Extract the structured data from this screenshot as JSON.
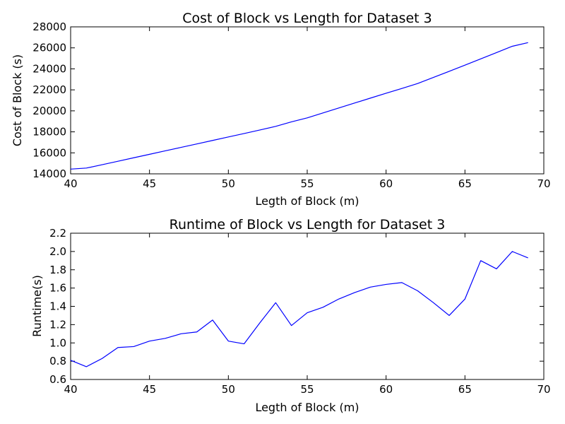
{
  "chart_data": [
    {
      "type": "line",
      "title": "Cost of Block vs Length for Dataset 3",
      "xlabel": "Legth of Block (m)",
      "ylabel": "Cost of Block (s)",
      "xlim": [
        40,
        70
      ],
      "ylim": [
        14000,
        28000
      ],
      "xticks": [
        "40",
        "45",
        "50",
        "55",
        "60",
        "65",
        "70"
      ],
      "yticks": [
        "14000",
        "16000",
        "18000",
        "20000",
        "22000",
        "24000",
        "26000",
        "28000"
      ],
      "grid": false,
      "color": "#0000ff",
      "x": [
        40,
        41,
        42,
        43,
        44,
        45,
        46,
        47,
        48,
        49,
        50,
        51,
        52,
        53,
        54,
        55,
        56,
        57,
        58,
        59,
        60,
        61,
        62,
        63,
        64,
        65,
        66,
        67,
        68,
        69
      ],
      "y": [
        14450,
        14550,
        14870,
        15200,
        15530,
        15860,
        16190,
        16520,
        16850,
        17180,
        17510,
        17840,
        18180,
        18520,
        18950,
        19330,
        19800,
        20270,
        20740,
        21210,
        21680,
        22130,
        22600,
        23180,
        23760,
        24350,
        24950,
        25550,
        26150,
        26500
      ]
    },
    {
      "type": "line",
      "title": "Runtime of Block vs Length for Dataset 3",
      "xlabel": "Legth of Block (m)",
      "ylabel": "Runtime(s)",
      "xlim": [
        40,
        70
      ],
      "ylim": [
        0.6,
        2.2
      ],
      "xticks": [
        "40",
        "45",
        "50",
        "55",
        "60",
        "65",
        "70"
      ],
      "yticks": [
        "0.6",
        "0.8",
        "1.0",
        "1.2",
        "1.4",
        "1.6",
        "1.8",
        "2.0",
        "2.2"
      ],
      "grid": false,
      "color": "#0000ff",
      "x": [
        40,
        41,
        42,
        43,
        44,
        45,
        46,
        47,
        48,
        49,
        50,
        51,
        52,
        53,
        54,
        55,
        56,
        57,
        58,
        59,
        60,
        61,
        62,
        63,
        64,
        65,
        66,
        67,
        68,
        69
      ],
      "y": [
        0.81,
        0.74,
        0.83,
        0.95,
        0.96,
        1.02,
        1.05,
        1.1,
        1.12,
        1.25,
        1.02,
        0.99,
        1.22,
        1.44,
        1.19,
        1.33,
        1.39,
        1.48,
        1.55,
        1.61,
        1.64,
        1.66,
        1.57,
        1.44,
        1.3,
        1.48,
        1.9,
        1.81,
        2.0,
        1.93
      ]
    }
  ]
}
